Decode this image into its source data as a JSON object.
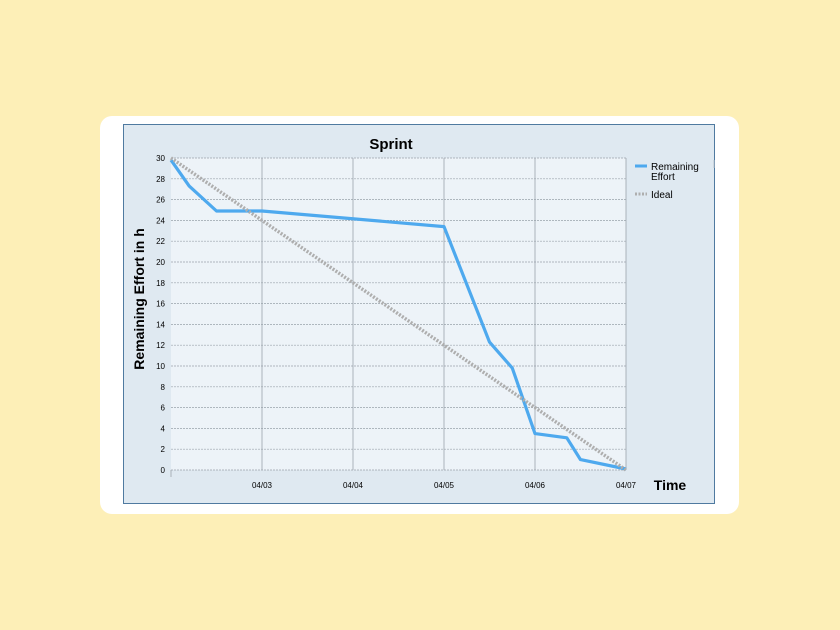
{
  "chart_data": {
    "type": "line",
    "title": "Sprint",
    "xlabel": "Time",
    "ylabel": "Remaining Effort in h",
    "x_tick_labels": [
      "04/03",
      "04/04",
      "04/05",
      "04/06",
      "04/07"
    ],
    "y_ticks": [
      0,
      2,
      4,
      6,
      8,
      10,
      12,
      14,
      16,
      18,
      20,
      22,
      24,
      26,
      28,
      30
    ],
    "ylim": [
      0,
      30
    ],
    "x_range": [
      0,
      5
    ],
    "x_unit_note": "x values in days, 0 = start (04/02), 1 = 04/03, ... 5 = 04/07",
    "grid": "both",
    "legend_position": "right",
    "series": [
      {
        "name": "Remaining Effort",
        "label_lines": [
          "Remaining",
          "Effort"
        ],
        "color": "#4ea9ee",
        "style": "solid",
        "x": [
          0,
          0.2,
          0.5,
          1.0,
          3.0,
          3.5,
          3.75,
          4.0,
          4.35,
          4.5,
          5.0
        ],
        "y": [
          29.8,
          27.3,
          24.9,
          24.9,
          23.4,
          12.3,
          9.8,
          3.5,
          3.1,
          1.0,
          0.1
        ]
      },
      {
        "name": "Ideal",
        "label_lines": [
          "Ideal"
        ],
        "color": "#aeaeae",
        "style": "dotted",
        "x": [
          0,
          5
        ],
        "y": [
          30,
          0
        ]
      }
    ]
  }
}
